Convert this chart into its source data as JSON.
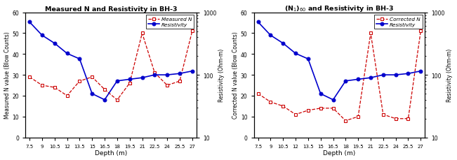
{
  "depth": [
    7.5,
    9,
    10.5,
    12,
    13.5,
    15,
    16.5,
    18,
    19.5,
    21,
    22.5,
    24,
    25.5,
    27
  ],
  "resistivity": [
    700,
    430,
    320,
    220,
    180,
    50,
    40,
    80,
    85,
    90,
    100,
    100,
    105,
    115
  ],
  "measured_N": [
    29,
    25,
    24,
    20,
    27,
    29,
    23,
    18,
    26,
    50,
    31,
    25,
    27,
    51
  ],
  "corrected_N": [
    21,
    17,
    15,
    11,
    13,
    14,
    14,
    8,
    10,
    50,
    11,
    9,
    9,
    51
  ],
  "title1": "Measured N and Resistivity in BH-3",
  "title2": "(N$_1$)$_{60}$ and Resistivity in BH-3",
  "ylabel1_left": "Measured N value (Blow Counts)",
  "ylabel1_right": "Resistivity (Ohm-m)",
  "ylabel2_left": "Corrected N value (Blow Counts)",
  "ylabel2_right": "Resistivity (Ohm-m)",
  "xlabel": "Depth (m)",
  "legend1_n": "Measured N",
  "legend1_r": "Resistivity",
  "legend2_n": "Corrected N",
  "legend2_r": "Resistivity",
  "x_ticks": [
    7.5,
    9,
    10.5,
    12,
    13.5,
    15,
    16.5,
    18,
    19.5,
    21,
    22.5,
    24,
    25.5,
    27
  ],
  "x_tick_labels": [
    "7.5",
    "9",
    "10.5",
    "12",
    "13.5",
    "15",
    "16.5",
    "18",
    "19.5",
    "21",
    "22.5",
    "24",
    "25.5",
    "27"
  ],
  "ylim_left": [
    0,
    60
  ],
  "ylim_right": [
    10,
    1000
  ],
  "color_N": "#cc0000",
  "color_R": "#0000cc",
  "background": "#ffffff",
  "fig_width": 6.51,
  "fig_height": 2.3
}
